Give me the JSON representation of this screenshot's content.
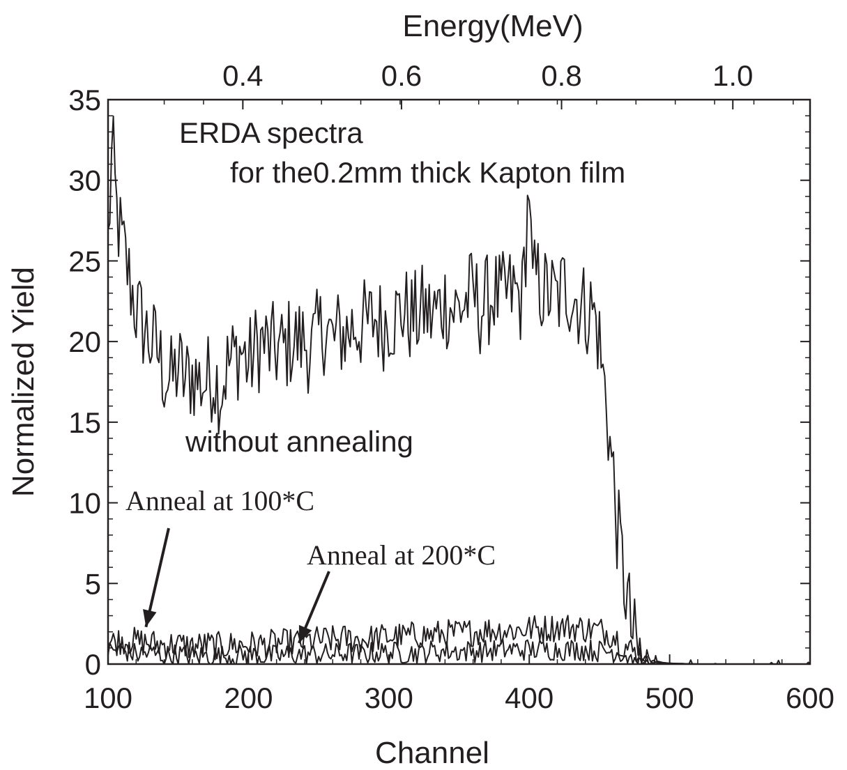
{
  "chart_data": {
    "type": "line",
    "title": "ERDA spectra",
    "subtitle": "for the0.2mm thick Kapton film",
    "xlabel": "Channel",
    "ylabel": "Normalized Yield",
    "top_xlabel": "Energy(MeV)",
    "xlim": [
      100,
      600
    ],
    "ylim": [
      0,
      35
    ],
    "x_ticks": [
      "100",
      "200",
      "300",
      "400",
      "500",
      "600"
    ],
    "y_ticks": [
      "0",
      "5",
      "10",
      "15",
      "20",
      "25",
      "30",
      "35"
    ],
    "top_ticks": [
      {
        "channel": 196,
        "label": "0.4"
      },
      {
        "channel": 309,
        "label": "0.6"
      },
      {
        "channel": 423,
        "label": "0.8"
      },
      {
        "channel": 545,
        "label": "1.0"
      }
    ],
    "grid": false,
    "annotations": [
      {
        "text": "without annealing",
        "series": "without annealing"
      },
      {
        "text": "Anneal at 100*C",
        "series": "Anneal at 100*C",
        "arrow_to": [
          127,
          2.3
        ]
      },
      {
        "text": "Anneal at 200*C",
        "series": "Anneal at 200*C",
        "arrow_to": [
          236,
          1.3
        ]
      }
    ],
    "series": [
      {
        "name": "without annealing",
        "x": [
          100,
          103,
          106,
          110,
          115,
          120,
          125,
          130,
          135,
          140,
          145,
          150,
          155,
          160,
          165,
          170,
          175,
          180,
          185,
          190,
          195,
          200,
          205,
          210,
          215,
          220,
          225,
          230,
          235,
          240,
          245,
          250,
          255,
          260,
          265,
          270,
          275,
          280,
          285,
          290,
          295,
          300,
          305,
          310,
          315,
          320,
          325,
          330,
          335,
          340,
          345,
          350,
          355,
          360,
          365,
          370,
          375,
          380,
          385,
          390,
          395,
          400,
          402,
          405,
          410,
          415,
          420,
          425,
          430,
          435,
          440,
          445,
          448,
          450,
          452,
          455,
          457,
          460,
          462,
          465,
          468,
          470,
          472,
          475,
          478,
          480,
          485,
          490,
          495,
          500,
          510,
          520,
          530,
          540,
          550,
          560,
          570,
          580,
          590,
          600
        ],
        "values": [
          26,
          32,
          28,
          26,
          24,
          22,
          21,
          20,
          19.5,
          18,
          17.5,
          18.5,
          17.5,
          18,
          17.5,
          17.5,
          18,
          17,
          18.5,
          19,
          19.5,
          18.5,
          19.5,
          20,
          19.5,
          19.5,
          19.5,
          20,
          20,
          20,
          19.5,
          20.5,
          21,
          20,
          20.5,
          20.5,
          21,
          21,
          21,
          21.5,
          21,
          21.5,
          21.5,
          22,
          21.5,
          21.5,
          22,
          21.5,
          22,
          22.5,
          22,
          22,
          22.5,
          23,
          22,
          22.5,
          23,
          22.5,
          23,
          23,
          22.5,
          30,
          23,
          24,
          23,
          23,
          22.5,
          23.5,
          23,
          22.5,
          22,
          22,
          21,
          20,
          18,
          16.5,
          14,
          11.5,
          9,
          7,
          5,
          4,
          2.5,
          1.2,
          0.6,
          0.3,
          0.2,
          0.1,
          0.05,
          0,
          0,
          0,
          0,
          0,
          0,
          0,
          0,
          0,
          0,
          0
        ]
      },
      {
        "name": "Anneal at 100*C",
        "x": [
          100,
          110,
          120,
          130,
          140,
          150,
          160,
          170,
          180,
          190,
          200,
          210,
          220,
          230,
          240,
          250,
          260,
          270,
          280,
          290,
          300,
          310,
          320,
          330,
          340,
          350,
          360,
          370,
          380,
          390,
          400,
          410,
          420,
          430,
          440,
          450,
          455,
          460,
          465,
          470,
          475,
          480,
          485,
          490,
          495,
          500,
          520,
          540,
          560,
          580,
          600
        ],
        "values": [
          1.3,
          1.5,
          1.4,
          1.3,
          1.2,
          1.2,
          1.1,
          1.2,
          1.1,
          1.2,
          1.2,
          1.2,
          1.3,
          1.3,
          1.4,
          1.5,
          1.5,
          1.6,
          1.5,
          1.6,
          1.7,
          1.7,
          1.8,
          1.8,
          1.9,
          1.9,
          2.0,
          2.1,
          2.1,
          2.1,
          2.2,
          2.2,
          2.3,
          2.3,
          2.2,
          2.1,
          2.0,
          1.8,
          1.4,
          1.0,
          0.7,
          0.5,
          0.3,
          0.2,
          0.1,
          0.05,
          0,
          0,
          0,
          0,
          0
        ]
      },
      {
        "name": "Anneal at 200*C",
        "x": [
          100,
          110,
          120,
          130,
          140,
          150,
          160,
          170,
          180,
          190,
          200,
          210,
          220,
          230,
          240,
          250,
          260,
          270,
          280,
          290,
          300,
          310,
          320,
          330,
          340,
          350,
          360,
          370,
          380,
          390,
          400,
          410,
          420,
          430,
          440,
          450,
          460,
          465,
          470,
          475,
          480,
          490,
          500,
          520,
          540,
          560,
          580,
          600
        ],
        "values": [
          0.8,
          0.9,
          0.6,
          0.7,
          0.5,
          0.6,
          0.5,
          0.5,
          0.5,
          0.5,
          0.6,
          0.5,
          0.5,
          0.6,
          0.6,
          0.6,
          0.6,
          0.7,
          0.6,
          0.7,
          0.7,
          0.7,
          0.7,
          0.8,
          0.8,
          0.8,
          0.8,
          0.8,
          0.9,
          0.9,
          0.9,
          0.9,
          0.9,
          0.9,
          0.9,
          0.8,
          0.8,
          0.7,
          0.5,
          0.3,
          0.2,
          0.1,
          0.05,
          0,
          0,
          0,
          0,
          0
        ]
      }
    ]
  }
}
